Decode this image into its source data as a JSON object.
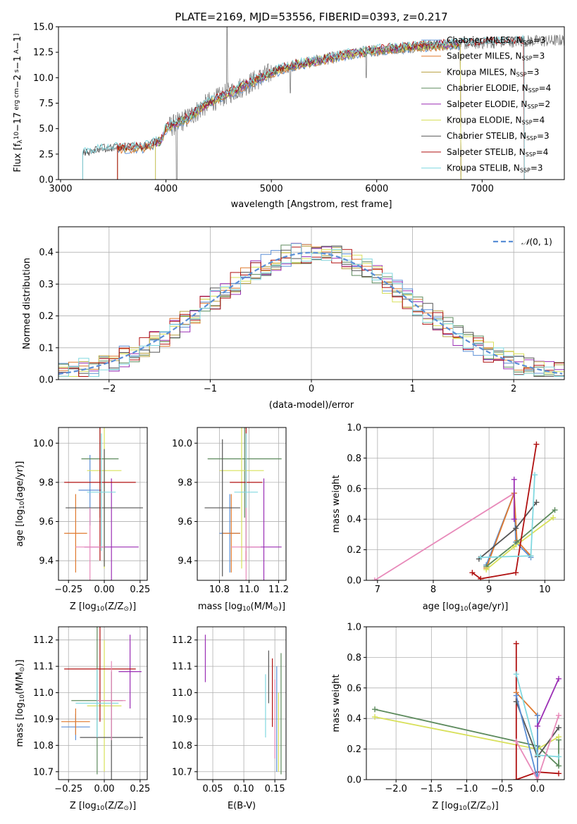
{
  "colors": {
    "Chabrier MILES": "#5b8fd6",
    "Salpeter MILES": "#e07a2f",
    "Kroupa MILES": "#b8a040",
    "Chabrier ELODIE": "#5c8a5c",
    "Salpeter ELODIE": "#9b2fb5",
    "Kroupa ELODIE": "#d8e05a",
    "Chabrier STELIB": "#555555",
    "Salpeter STELIB": "#b01010",
    "Kroupa STELIB": "#80d8e0",
    "extra": "#e88aba",
    "normal": "#5b8fd6",
    "data": "#808080"
  },
  "chart_data": [
    {
      "id": "spectrum",
      "type": "line",
      "title": "PLATE=2169, MJD=53556, FIBERID=0393, z=0.217",
      "xlabel": "wavelength [Angstrom, rest frame]",
      "ylabel": "Flux [f",
      "ylabel_parts": [
        "Flux [f",
        "λ",
        "10",
        "−17",
        " erg cm",
        "−2",
        " s",
        "−1",
        " A",
        "−1",
        "]"
      ],
      "xlim": [
        2980,
        7780
      ],
      "ylim": [
        0,
        15
      ],
      "xticks": [
        3000,
        4000,
        5000,
        6000,
        7000
      ],
      "yticks": [
        0.0,
        2.5,
        5.0,
        7.5,
        10.0,
        12.5,
        15.0
      ],
      "ytick_labels": [
        "0.0",
        "2.5",
        "5.0",
        "7.5",
        "10.0",
        "12.5",
        "15.0"
      ],
      "data_start": 3210,
      "data_end": 7780,
      "data_curve": [
        [
          3210,
          2.5
        ],
        [
          3400,
          3.0
        ],
        [
          3600,
          3.1
        ],
        [
          3800,
          3.2
        ],
        [
          3950,
          3.8
        ],
        [
          4000,
          5.0
        ],
        [
          4200,
          6.0
        ],
        [
          4400,
          7.5
        ],
        [
          4600,
          8.5
        ],
        [
          4800,
          9.5
        ],
        [
          5000,
          10.5
        ],
        [
          5200,
          11.2
        ],
        [
          5400,
          11.6
        ],
        [
          5600,
          12.0
        ],
        [
          5800,
          12.4
        ],
        [
          6000,
          12.7
        ],
        [
          6200,
          12.9
        ],
        [
          6400,
          13.1
        ],
        [
          6600,
          13.2
        ],
        [
          6800,
          13.3
        ],
        [
          7000,
          13.4
        ],
        [
          7200,
          13.5
        ],
        [
          7400,
          13.6
        ],
        [
          7600,
          13.6
        ],
        [
          7780,
          13.7
        ]
      ],
      "model_starts": {
        "Chabrier MILES": 3540,
        "Salpeter MILES": 3540,
        "Kroupa MILES": 3540,
        "Chabrier ELODIE": 3900,
        "Salpeter ELODIE": 3900,
        "Kroupa ELODIE": 3900,
        "Chabrier STELIB": 3210,
        "Salpeter STELIB": 3540,
        "Kroupa STELIB": 3210
      },
      "model_ends": {
        "Chabrier MILES": 6800,
        "Salpeter MILES": 6800,
        "Kroupa MILES": 6800,
        "Chabrier ELODIE": 6800,
        "Salpeter ELODIE": 6800,
        "Kroupa ELODIE": 6800,
        "Chabrier STELIB": 7400,
        "Salpeter STELIB": 7400,
        "Kroupa STELIB": 7400
      },
      "legend": [
        {
          "name": "Chabrier MILES",
          "nssp": "3"
        },
        {
          "name": "Salpeter MILES",
          "nssp": "3"
        },
        {
          "name": "Kroupa MILES",
          "nssp": "3"
        },
        {
          "name": "Chabrier ELODIE",
          "nssp": "4"
        },
        {
          "name": "Salpeter ELODIE",
          "nssp": "2"
        },
        {
          "name": "Kroupa ELODIE",
          "nssp": "4"
        },
        {
          "name": "Chabrier STELIB",
          "nssp": "3"
        },
        {
          "name": "Salpeter STELIB",
          "nssp": "4"
        },
        {
          "name": "Kroupa STELIB",
          "nssp": "3"
        }
      ],
      "legend_placement": "right",
      "grid": false
    },
    {
      "id": "residuals",
      "type": "line",
      "xlabel": "(data-model)/error",
      "ylabel": "Normed distribution",
      "xlim": [
        -2.5,
        2.5
      ],
      "ylim": [
        0,
        0.48
      ],
      "xticks": [
        -2,
        -1,
        0,
        1,
        2
      ],
      "xtick_labels": [
        "−2",
        "−1",
        "0",
        "1",
        "2"
      ],
      "yticks": [
        0.0,
        0.1,
        0.2,
        0.3,
        0.4
      ],
      "ytick_labels": [
        "0.0",
        "0.1",
        "0.2",
        "0.3",
        "0.4"
      ],
      "bin_width": 0.1,
      "grid": true,
      "legend": [
        {
          "name": "N(0,1)",
          "label_parts": [
            "𝒩",
            "(0, 1)"
          ]
        }
      ],
      "legend_placement": "top-right"
    },
    {
      "id": "age_vs_Z",
      "type": "scatter",
      "xlabel_parts": [
        "Z [log",
        "10",
        "(Z/Z",
        "⊙",
        ")]"
      ],
      "ylabel_parts": [
        "age  [log",
        "10",
        "(age/yr)]"
      ],
      "xlim": [
        -0.32,
        0.3
      ],
      "ylim": [
        9.3,
        10.08
      ],
      "xticks": [
        -0.25,
        0.0,
        0.25
      ],
      "xtick_labels": [
        "−0.25",
        "0.00",
        "0.25"
      ],
      "yticks": [
        9.4,
        9.6,
        9.8,
        10.0
      ],
      "ytick_labels": [
        "9.4",
        "9.6",
        "9.8",
        "10.0"
      ],
      "grid": true,
      "points": [
        {
          "c": "Chabrier MILES",
          "x": -0.1,
          "xe": 0.08,
          "y": 9.76,
          "ye": 0.18
        },
        {
          "c": "Salpeter MILES",
          "x": -0.2,
          "xe": 0.08,
          "y": 9.54,
          "ye": 0.2
        },
        {
          "c": "Chabrier ELODIE",
          "x": -0.03,
          "xe": 0.13,
          "y": 9.92,
          "ye": 0.3
        },
        {
          "c": "Salpeter ELODIE",
          "x": 0.05,
          "xe": 0.19,
          "y": 9.47,
          "ye": 0.35
        },
        {
          "c": "Kroupa ELODIE",
          "x": 0.0,
          "xe": 0.12,
          "y": 9.86,
          "ye": 0.5
        },
        {
          "c": "Chabrier STELIB",
          "x": 0.0,
          "xe": 0.27,
          "y": 9.67,
          "ye": 0.3
        },
        {
          "c": "Salpeter STELIB",
          "x": -0.03,
          "xe": 0.25,
          "y": 9.8,
          "ye": 0.4
        },
        {
          "c": "Kroupa STELIB",
          "x": -0.02,
          "xe": 0.1,
          "y": 9.75,
          "ye": 0.3
        },
        {
          "c": "extra",
          "x": -0.1,
          "xe": 0.1,
          "y": 9.47,
          "ye": 0.2
        }
      ]
    },
    {
      "id": "age_vs_mass",
      "type": "scatter",
      "xlabel_parts": [
        "mass [log",
        "10",
        "(M/M",
        "⊙",
        ")]"
      ],
      "xlim": [
        10.65,
        11.25
      ],
      "ylim": [
        9.3,
        10.08
      ],
      "xticks": [
        10.8,
        11.0,
        11.2
      ],
      "xtick_labels": [
        "10.8",
        "11.0",
        "11.2"
      ],
      "yticks": [
        9.4,
        9.6,
        9.8,
        10.0
      ],
      "ytick_labels": [
        "9.4",
        "9.6",
        "9.8",
        "10.0"
      ],
      "grid": true,
      "points": [
        {
          "c": "Chabrier MILES",
          "x": 10.87,
          "xe": 0.07,
          "y": 9.54,
          "ye": 0.2
        },
        {
          "c": "Salpeter MILES",
          "x": 10.88,
          "xe": 0.06,
          "y": 9.54,
          "ye": 0.2
        },
        {
          "c": "Chabrier ELODIE",
          "x": 10.97,
          "xe": 0.25,
          "y": 9.92,
          "ye": 0.3
        },
        {
          "c": "Salpeter ELODIE",
          "x": 11.1,
          "xe": 0.12,
          "y": 9.47,
          "ye": 0.35
        },
        {
          "c": "Kroupa ELODIE",
          "x": 10.95,
          "xe": 0.15,
          "y": 9.86,
          "ye": 0.5
        },
        {
          "c": "Chabrier STELIB",
          "x": 10.82,
          "xe": 0.12,
          "y": 9.67,
          "ye": 0.35
        },
        {
          "c": "Salpeter STELIB",
          "x": 10.98,
          "xe": 0.11,
          "y": 9.8,
          "ye": 0.4
        },
        {
          "c": "Kroupa STELIB",
          "x": 10.98,
          "xe": 0.08,
          "y": 9.75,
          "ye": 0.3
        },
        {
          "c": "extra",
          "x": 10.98,
          "xe": 0.1,
          "y": 9.47,
          "ye": 0.2
        }
      ]
    },
    {
      "id": "weight_vs_age",
      "type": "line",
      "xlabel_parts": [
        "age  [log",
        "10",
        "(age/yr)]"
      ],
      "ylabel": "mass weight",
      "xlim": [
        6.8,
        10.35
      ],
      "ylim": [
        0,
        1.0
      ],
      "xticks": [
        7,
        8,
        9,
        10
      ],
      "xtick_labels": [
        "7",
        "8",
        "9",
        "10"
      ],
      "yticks": [
        0.0,
        0.2,
        0.4,
        0.6,
        0.8,
        1.0
      ],
      "ytick_labels": [
        "0.0",
        "0.2",
        "0.4",
        "0.6",
        "0.8",
        "1.0"
      ],
      "grid": true,
      "series": [
        {
          "c": "extra",
          "pts": [
            [
              6.95,
              0.0
            ],
            [
              9.45,
              0.57
            ]
          ]
        },
        {
          "c": "Chabrier MILES",
          "pts": [
            [
              8.95,
              0.1
            ],
            [
              9.45,
              0.57
            ],
            [
              9.48,
              0.25
            ],
            [
              9.75,
              0.15
            ]
          ]
        },
        {
          "c": "Salpeter MILES",
          "pts": [
            [
              8.95,
              0.08
            ],
            [
              9.45,
              0.57
            ],
            [
              9.5,
              0.26
            ],
            [
              9.75,
              0.16
            ]
          ]
        },
        {
          "c": "Chabrier ELODIE",
          "pts": [
            [
              8.95,
              0.09
            ],
            [
              9.5,
              0.25
            ],
            [
              10.18,
              0.46
            ]
          ]
        },
        {
          "c": "Salpeter ELODIE",
          "pts": [
            [
              9.45,
              0.66
            ],
            [
              9.45,
              0.4
            ]
          ]
        },
        {
          "c": "Kroupa ELODIE",
          "pts": [
            [
              8.95,
              0.07
            ],
            [
              9.45,
              0.22
            ],
            [
              10.15,
              0.41
            ]
          ]
        },
        {
          "c": "Chabrier STELIB",
          "pts": [
            [
              8.82,
              0.14
            ],
            [
              9.48,
              0.34
            ],
            [
              9.85,
              0.51
            ]
          ]
        },
        {
          "c": "Salpeter STELIB",
          "pts": [
            [
              8.7,
              0.05
            ],
            [
              8.85,
              0.01
            ],
            [
              9.48,
              0.05
            ],
            [
              9.85,
              0.89
            ]
          ]
        },
        {
          "c": "Kroupa STELIB",
          "pts": [
            [
              8.85,
              0.15
            ],
            [
              9.75,
              0.16
            ],
            [
              9.82,
              0.69
            ]
          ]
        }
      ]
    },
    {
      "id": "mass_vs_Z",
      "type": "scatter",
      "xlabel_parts": [
        "Z [log",
        "10",
        "(Z/Z",
        "⊙",
        ")]"
      ],
      "ylabel_parts": [
        "mass [log",
        "10",
        "(M/M",
        "⊙",
        ")]"
      ],
      "xlim": [
        -0.32,
        0.3
      ],
      "ylim": [
        10.67,
        11.25
      ],
      "xticks": [
        -0.25,
        0.0,
        0.25
      ],
      "xtick_labels": [
        "−0.25",
        "0.00",
        "0.25"
      ],
      "yticks": [
        10.7,
        10.8,
        10.9,
        11.0,
        11.1,
        11.2
      ],
      "ytick_labels": [
        "10.7",
        "10.8",
        "10.9",
        "11.0",
        "11.1",
        "11.2"
      ],
      "grid": true,
      "points": [
        {
          "c": "Chabrier MILES",
          "x": -0.2,
          "xe": 0.1,
          "y": 10.87,
          "ye": 0.05
        },
        {
          "c": "Salpeter MILES",
          "x": -0.2,
          "xe": 0.1,
          "y": 10.89,
          "ye": 0.05
        },
        {
          "c": "Chabrier ELODIE",
          "x": -0.05,
          "xe": 0.18,
          "y": 10.97,
          "ye": 0.28
        },
        {
          "c": "Salpeter ELODIE",
          "x": 0.18,
          "xe": 0.08,
          "y": 11.08,
          "ye": 0.14
        },
        {
          "c": "Kroupa ELODIE",
          "x": 0.0,
          "xe": 0.12,
          "y": 10.95,
          "ye": 0.25
        },
        {
          "c": "Chabrier STELIB",
          "x": 0.05,
          "xe": 0.22,
          "y": 10.83,
          "ye": 0.25
        },
        {
          "c": "Salpeter STELIB",
          "x": -0.03,
          "xe": 0.25,
          "y": 11.09,
          "ye": 0.2
        },
        {
          "c": "Kroupa STELIB",
          "x": -0.05,
          "xe": 0.15,
          "y": 10.96,
          "ye": 0.13
        },
        {
          "c": "extra",
          "x": 0.05,
          "xe": 0.1,
          "y": 10.97,
          "ye": 0.15
        }
      ]
    },
    {
      "id": "mass_vs_ebv",
      "type": "scatter",
      "xlabel": "E(B-V)",
      "xlim": [
        0.025,
        0.168
      ],
      "ylim": [
        10.67,
        11.25
      ],
      "xticks": [
        0.05,
        0.1,
        0.15
      ],
      "xtick_labels": [
        "0.05",
        "0.10",
        "0.15"
      ],
      "yticks": [
        10.7,
        10.8,
        10.9,
        11.0,
        11.1,
        11.2
      ],
      "ytick_labels": [
        "10.7",
        "10.8",
        "10.9",
        "11.0",
        "11.1",
        "11.2"
      ],
      "grid": true,
      "points": [
        {
          "c": "Salpeter ELODIE",
          "x": 0.038,
          "xe": 0,
          "y": 11.13,
          "ye": 0.09
        },
        {
          "c": "Kroupa STELIB",
          "x": 0.135,
          "xe": 0,
          "y": 10.95,
          "ye": 0.12
        },
        {
          "c": "Chabrier STELIB",
          "x": 0.14,
          "xe": 0,
          "y": 11.06,
          "ye": 0.1
        },
        {
          "c": "Salpeter STELIB",
          "x": 0.146,
          "xe": 0,
          "y": 11.0,
          "ye": 0.13
        },
        {
          "c": "Chabrier MILES",
          "x": 0.153,
          "xe": 0,
          "y": 10.9,
          "ye": 0.2
        },
        {
          "c": "Kroupa ELODIE",
          "x": 0.156,
          "xe": 0,
          "y": 10.85,
          "ye": 0.15
        },
        {
          "c": "Chabrier ELODIE",
          "x": 0.16,
          "xe": 0,
          "y": 10.92,
          "ye": 0.23
        },
        {
          "c": "extra",
          "x": 0.15,
          "xe": 0,
          "y": 10.9,
          "ye": 0.15
        }
      ]
    },
    {
      "id": "weight_vs_Z",
      "type": "line",
      "xlabel_parts": [
        "Z [log",
        "10",
        "(Z/Z",
        "⊙",
        ")]"
      ],
      "ylabel": "mass weight",
      "xlim": [
        -2.42,
        0.38
      ],
      "ylim": [
        0,
        1.0
      ],
      "xticks": [
        -2.0,
        -1.5,
        -1.0,
        -0.5,
        0.0
      ],
      "xtick_labels": [
        "−2.0",
        "−1.5",
        "−1.0",
        "−0.5",
        "0.0"
      ],
      "yticks": [
        0.0,
        0.2,
        0.4,
        0.6,
        0.8,
        1.0
      ],
      "ytick_labels": [
        "0.0",
        "0.2",
        "0.4",
        "0.6",
        "0.8",
        "1.0"
      ],
      "grid": true,
      "series": [
        {
          "c": "Chabrier ELODIE",
          "pts": [
            [
              -2.3,
              0.46
            ],
            [
              0.0,
              0.22
            ],
            [
              0.3,
              0.09
            ],
            [
              0.3,
              0.26
            ]
          ]
        },
        {
          "c": "Kroupa ELODIE",
          "pts": [
            [
              -2.3,
              0.41
            ],
            [
              0.0,
              0.2
            ],
            [
              0.3,
              0.28
            ]
          ]
        },
        {
          "c": "Salpeter STELIB",
          "pts": [
            [
              -0.3,
              0.89
            ],
            [
              -0.3,
              0.0
            ],
            [
              0.0,
              0.05
            ],
            [
              0.3,
              0.04
            ]
          ]
        },
        {
          "c": "Chabrier STELIB",
          "pts": [
            [
              -0.3,
              0.51
            ],
            [
              0.0,
              0.15
            ],
            [
              0.3,
              0.34
            ]
          ]
        },
        {
          "c": "Salpeter MILES",
          "pts": [
            [
              -0.3,
              0.57
            ],
            [
              0.0,
              0.42
            ],
            [
              0.0,
              0.0
            ]
          ]
        },
        {
          "c": "Chabrier MILES",
          "pts": [
            [
              -0.3,
              0.55
            ],
            [
              0.0,
              0.0
            ],
            [
              0.0,
              0.42
            ]
          ]
        },
        {
          "c": "Salpeter ELODIE",
          "pts": [
            [
              0.0,
              0.35
            ],
            [
              0.3,
              0.66
            ]
          ]
        },
        {
          "c": "Kroupa STELIB",
          "pts": [
            [
              -0.3,
              0.69
            ],
            [
              0.0,
              0.16
            ],
            [
              0.3,
              0.15
            ]
          ]
        },
        {
          "c": "extra",
          "pts": [
            [
              -0.3,
              0.25
            ],
            [
              0.0,
              0.0
            ],
            [
              0.3,
              0.42
            ]
          ]
        }
      ]
    }
  ]
}
